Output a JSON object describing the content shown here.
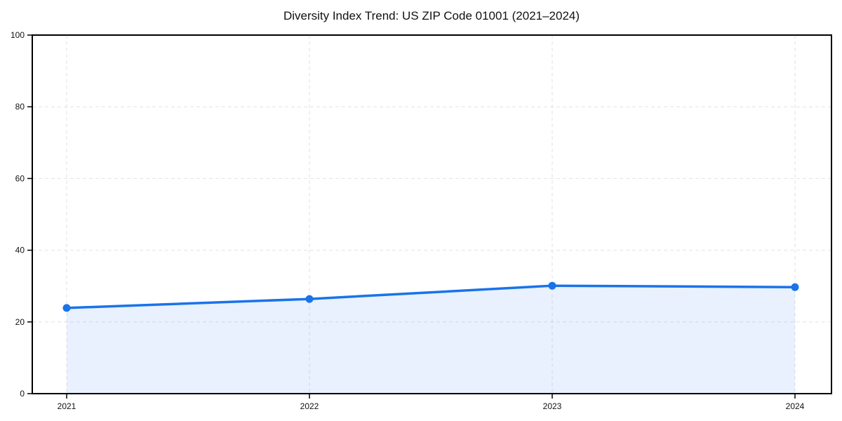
{
  "chart_data": {
    "type": "line",
    "title": "Diversity Index Trend: US ZIP Code 01001 (2021–2024)",
    "categories": [
      "2021",
      "2022",
      "2023",
      "2024"
    ],
    "series": [
      {
        "name": "Diversity Index",
        "values": [
          23.9,
          26.4,
          30.1,
          29.7
        ]
      }
    ],
    "xlabel": "",
    "ylabel": "",
    "ylim": [
      0,
      100
    ],
    "y_ticks": [
      0,
      20,
      40,
      60,
      80,
      100
    ],
    "grid": true,
    "grid_style": "dashed",
    "legend": false,
    "marker": "circle",
    "colors": {
      "line": "#1a73e8",
      "marker": "#1a73e8",
      "area_fill": "rgba(26,115,232,0.10)",
      "grid": "#e2e2e2",
      "spine": "#000000",
      "tick_label": "#111111",
      "background": "#ffffff"
    }
  }
}
